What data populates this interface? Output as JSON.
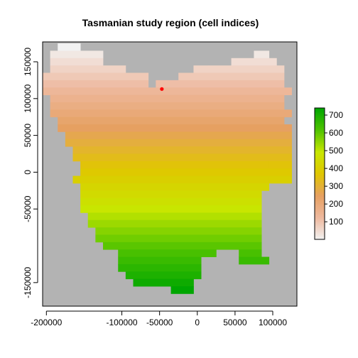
{
  "chart_data": {
    "type": "heatmap",
    "title": "Tasmanian study region (cell indices)",
    "xlabel": "",
    "ylabel": "",
    "xlim": [
      -205000,
      132000
    ],
    "ylim": [
      -182000,
      177000
    ],
    "background_color": "#b3b3b3",
    "cell_size": 10000,
    "x_ticks": [
      -200000,
      -100000,
      -50000,
      0,
      50000,
      100000
    ],
    "y_ticks": [
      150000,
      100000,
      50000,
      0,
      -50000,
      -150000
    ],
    "point": {
      "x": -47000,
      "y": 113000,
      "color": "#ff0000"
    },
    "legend": {
      "position": "right",
      "min": 1,
      "max": 740,
      "ticks": [
        100,
        200,
        300,
        400,
        500,
        600,
        700
      ],
      "colors": [
        "#f2f2f2",
        "#eeb99f",
        "#e6a061",
        "#e0c600",
        "#c8e600",
        "#4fc300",
        "#00a600"
      ]
    },
    "value_range": [
      1,
      740
    ],
    "rows": [
      {
        "y": 170000,
        "x": [
          -180000,
          -160000
        ]
      },
      {
        "y": 160000,
        "x": [
          -190000,
          -130000,
          80000,
          90000
        ]
      },
      {
        "y": 150000,
        "x": [
          -190000,
          -130000,
          50000,
          100000
        ]
      },
      {
        "y": 140000,
        "x": [
          -190000,
          -100000,
          0,
          10000,
          20000,
          110000
        ]
      },
      {
        "y": 130000,
        "x": [
          -200000,
          -90000,
          -80000,
          -70000,
          -20000,
          110000
        ]
      },
      {
        "y": 120000,
        "x": [
          -200000,
          -70000,
          -50000,
          110000
        ]
      },
      {
        "y": 110000,
        "x": [
          -200000,
          120000
        ]
      },
      {
        "y": 100000,
        "x": [
          -190000,
          110000
        ]
      },
      {
        "y": 90000,
        "x": [
          -190000,
          110000
        ]
      },
      {
        "y": 80000,
        "x": [
          -190000,
          120000
        ]
      },
      {
        "y": 70000,
        "x": [
          -180000,
          110000
        ]
      },
      {
        "y": 60000,
        "x": [
          -180000,
          120000
        ]
      },
      {
        "y": 50000,
        "x": [
          -170000,
          120000
        ]
      },
      {
        "y": 40000,
        "x": [
          -170000,
          120000
        ]
      },
      {
        "y": 30000,
        "x": [
          -160000,
          120000
        ]
      },
      {
        "y": 20000,
        "x": [
          -160000,
          120000
        ]
      },
      {
        "y": 10000,
        "x": [
          -150000,
          90000,
          100000,
          120000
        ]
      },
      {
        "y": 0,
        "x": [
          -150000,
          90000,
          100000,
          120000
        ]
      },
      {
        "y": -10000,
        "x": [
          -160000,
          90000,
          100000,
          120000
        ]
      },
      {
        "y": -20000,
        "x": [
          -150000,
          90000
        ]
      },
      {
        "y": -30000,
        "x": [
          -150000,
          80000
        ]
      },
      {
        "y": -40000,
        "x": [
          -150000,
          80000
        ]
      },
      {
        "y": -50000,
        "x": [
          -150000,
          80000
        ]
      },
      {
        "y": -60000,
        "x": [
          -140000,
          80000
        ]
      },
      {
        "y": -70000,
        "x": [
          -140000,
          80000
        ]
      },
      {
        "y": -80000,
        "x": [
          -130000,
          80000
        ]
      },
      {
        "y": -90000,
        "x": [
          -130000,
          80000
        ]
      },
      {
        "y": -100000,
        "x": [
          -120000,
          80000
        ]
      },
      {
        "y": -110000,
        "x": [
          -100000,
          20000,
          60000,
          80000
        ]
      },
      {
        "y": -120000,
        "x": [
          -100000,
          0,
          60000,
          90000
        ]
      },
      {
        "y": -130000,
        "x": [
          -100000,
          0
        ]
      },
      {
        "y": -140000,
        "x": [
          -90000,
          0
        ]
      },
      {
        "y": -150000,
        "x": [
          -80000,
          -10000
        ]
      },
      {
        "y": -160000,
        "x": [
          -30000,
          -10000
        ]
      }
    ]
  }
}
